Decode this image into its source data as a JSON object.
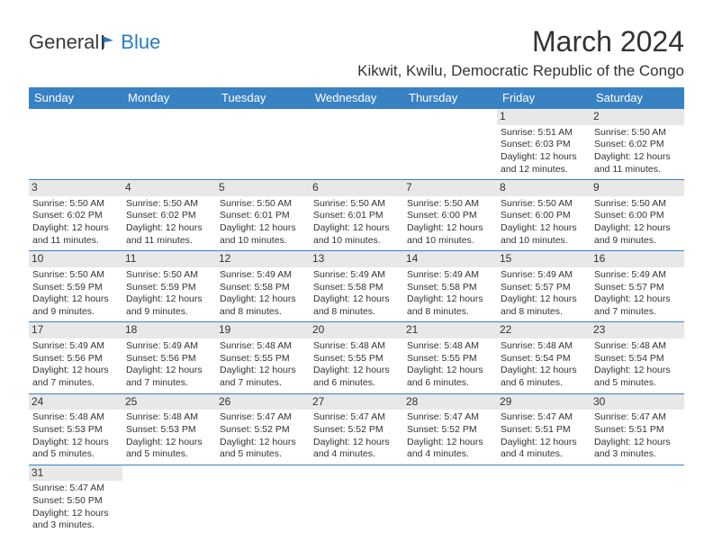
{
  "brand": {
    "part1": "General",
    "part2": "Blue"
  },
  "title": "March 2024",
  "location": "Kikwit, Kwilu, Democratic Republic of the Congo",
  "colors": {
    "header_bg": "#3882c4",
    "header_text": "#ffffff",
    "daynum_bg": "#e8e8e8",
    "border": "#3882c4",
    "brand_blue": "#2b7bbf",
    "text": "#333333",
    "background": "#ffffff"
  },
  "weekdays": [
    "Sunday",
    "Monday",
    "Tuesday",
    "Wednesday",
    "Thursday",
    "Friday",
    "Saturday"
  ],
  "weeks": [
    [
      {
        "day": "",
        "lines": []
      },
      {
        "day": "",
        "lines": []
      },
      {
        "day": "",
        "lines": []
      },
      {
        "day": "",
        "lines": []
      },
      {
        "day": "",
        "lines": []
      },
      {
        "day": "1",
        "lines": [
          "Sunrise: 5:51 AM",
          "Sunset: 6:03 PM",
          "Daylight: 12 hours",
          "and 12 minutes."
        ]
      },
      {
        "day": "2",
        "lines": [
          "Sunrise: 5:50 AM",
          "Sunset: 6:02 PM",
          "Daylight: 12 hours",
          "and 11 minutes."
        ]
      }
    ],
    [
      {
        "day": "3",
        "lines": [
          "Sunrise: 5:50 AM",
          "Sunset: 6:02 PM",
          "Daylight: 12 hours",
          "and 11 minutes."
        ]
      },
      {
        "day": "4",
        "lines": [
          "Sunrise: 5:50 AM",
          "Sunset: 6:02 PM",
          "Daylight: 12 hours",
          "and 11 minutes."
        ]
      },
      {
        "day": "5",
        "lines": [
          "Sunrise: 5:50 AM",
          "Sunset: 6:01 PM",
          "Daylight: 12 hours",
          "and 10 minutes."
        ]
      },
      {
        "day": "6",
        "lines": [
          "Sunrise: 5:50 AM",
          "Sunset: 6:01 PM",
          "Daylight: 12 hours",
          "and 10 minutes."
        ]
      },
      {
        "day": "7",
        "lines": [
          "Sunrise: 5:50 AM",
          "Sunset: 6:00 PM",
          "Daylight: 12 hours",
          "and 10 minutes."
        ]
      },
      {
        "day": "8",
        "lines": [
          "Sunrise: 5:50 AM",
          "Sunset: 6:00 PM",
          "Daylight: 12 hours",
          "and 10 minutes."
        ]
      },
      {
        "day": "9",
        "lines": [
          "Sunrise: 5:50 AM",
          "Sunset: 6:00 PM",
          "Daylight: 12 hours",
          "and 9 minutes."
        ]
      }
    ],
    [
      {
        "day": "10",
        "lines": [
          "Sunrise: 5:50 AM",
          "Sunset: 5:59 PM",
          "Daylight: 12 hours",
          "and 9 minutes."
        ]
      },
      {
        "day": "11",
        "lines": [
          "Sunrise: 5:50 AM",
          "Sunset: 5:59 PM",
          "Daylight: 12 hours",
          "and 9 minutes."
        ]
      },
      {
        "day": "12",
        "lines": [
          "Sunrise: 5:49 AM",
          "Sunset: 5:58 PM",
          "Daylight: 12 hours",
          "and 8 minutes."
        ]
      },
      {
        "day": "13",
        "lines": [
          "Sunrise: 5:49 AM",
          "Sunset: 5:58 PM",
          "Daylight: 12 hours",
          "and 8 minutes."
        ]
      },
      {
        "day": "14",
        "lines": [
          "Sunrise: 5:49 AM",
          "Sunset: 5:58 PM",
          "Daylight: 12 hours",
          "and 8 minutes."
        ]
      },
      {
        "day": "15",
        "lines": [
          "Sunrise: 5:49 AM",
          "Sunset: 5:57 PM",
          "Daylight: 12 hours",
          "and 8 minutes."
        ]
      },
      {
        "day": "16",
        "lines": [
          "Sunrise: 5:49 AM",
          "Sunset: 5:57 PM",
          "Daylight: 12 hours",
          "and 7 minutes."
        ]
      }
    ],
    [
      {
        "day": "17",
        "lines": [
          "Sunrise: 5:49 AM",
          "Sunset: 5:56 PM",
          "Daylight: 12 hours",
          "and 7 minutes."
        ]
      },
      {
        "day": "18",
        "lines": [
          "Sunrise: 5:49 AM",
          "Sunset: 5:56 PM",
          "Daylight: 12 hours",
          "and 7 minutes."
        ]
      },
      {
        "day": "19",
        "lines": [
          "Sunrise: 5:48 AM",
          "Sunset: 5:55 PM",
          "Daylight: 12 hours",
          "and 7 minutes."
        ]
      },
      {
        "day": "20",
        "lines": [
          "Sunrise: 5:48 AM",
          "Sunset: 5:55 PM",
          "Daylight: 12 hours",
          "and 6 minutes."
        ]
      },
      {
        "day": "21",
        "lines": [
          "Sunrise: 5:48 AM",
          "Sunset: 5:55 PM",
          "Daylight: 12 hours",
          "and 6 minutes."
        ]
      },
      {
        "day": "22",
        "lines": [
          "Sunrise: 5:48 AM",
          "Sunset: 5:54 PM",
          "Daylight: 12 hours",
          "and 6 minutes."
        ]
      },
      {
        "day": "23",
        "lines": [
          "Sunrise: 5:48 AM",
          "Sunset: 5:54 PM",
          "Daylight: 12 hours",
          "and 5 minutes."
        ]
      }
    ],
    [
      {
        "day": "24",
        "lines": [
          "Sunrise: 5:48 AM",
          "Sunset: 5:53 PM",
          "Daylight: 12 hours",
          "and 5 minutes."
        ]
      },
      {
        "day": "25",
        "lines": [
          "Sunrise: 5:48 AM",
          "Sunset: 5:53 PM",
          "Daylight: 12 hours",
          "and 5 minutes."
        ]
      },
      {
        "day": "26",
        "lines": [
          "Sunrise: 5:47 AM",
          "Sunset: 5:52 PM",
          "Daylight: 12 hours",
          "and 5 minutes."
        ]
      },
      {
        "day": "27",
        "lines": [
          "Sunrise: 5:47 AM",
          "Sunset: 5:52 PM",
          "Daylight: 12 hours",
          "and 4 minutes."
        ]
      },
      {
        "day": "28",
        "lines": [
          "Sunrise: 5:47 AM",
          "Sunset: 5:52 PM",
          "Daylight: 12 hours",
          "and 4 minutes."
        ]
      },
      {
        "day": "29",
        "lines": [
          "Sunrise: 5:47 AM",
          "Sunset: 5:51 PM",
          "Daylight: 12 hours",
          "and 4 minutes."
        ]
      },
      {
        "day": "30",
        "lines": [
          "Sunrise: 5:47 AM",
          "Sunset: 5:51 PM",
          "Daylight: 12 hours",
          "and 3 minutes."
        ]
      }
    ],
    [
      {
        "day": "31",
        "lines": [
          "Sunrise: 5:47 AM",
          "Sunset: 5:50 PM",
          "Daylight: 12 hours",
          "and 3 minutes."
        ]
      },
      {
        "day": "",
        "lines": []
      },
      {
        "day": "",
        "lines": []
      },
      {
        "day": "",
        "lines": []
      },
      {
        "day": "",
        "lines": []
      },
      {
        "day": "",
        "lines": []
      },
      {
        "day": "",
        "lines": []
      }
    ]
  ]
}
